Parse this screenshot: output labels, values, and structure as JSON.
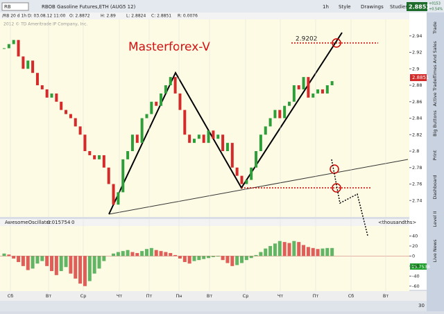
{
  "toolbar": {
    "symbol": "RB",
    "description": "RBOB Gasoline Futures,ETH (AUG5 12)",
    "interval": "1h",
    "style": "Style",
    "drawings": "Drawings",
    "studies": "Studies",
    "last": "2.8851",
    "change": "+0153",
    "change_pct": "+0.54%"
  },
  "info_bar": [
    "/RB 20 d 1h",
    "D: 03.08.12 11:00",
    "O: 2.8872",
    "H: 2.89",
    "L: 2.8824",
    "C: 2.8851",
    "R: 0.0076"
  ],
  "copyright": "2012 © TD Ameritrade IP Company, Inc.",
  "annotation": "Masterforex-V",
  "level_label": "2.9202",
  "price_tag": "2.8851",
  "oscillator": {
    "name": "AwesomeOscillator",
    "value": "0.015754",
    "extra": "0",
    "units": "<thousandths>",
    "value_tag": "15.7538"
  },
  "side_tabs": [
    "Trade",
    "Times And Sales",
    "Active Trader",
    "Big Buttons",
    "Print",
    "Dashboard",
    "Level II",
    "Live News"
  ],
  "scroll_label": "30",
  "chart_data": {
    "type": "candlestick",
    "categories": [
      "Сб",
      "Вт",
      "Ср",
      "Чт",
      "Пт",
      "Пн",
      "Вт",
      "Ср",
      "Чт",
      "Пт",
      "Сб",
      "Вт"
    ],
    "ylim": [
      2.72,
      2.96
    ],
    "yticks": [
      2.74,
      2.76,
      2.78,
      2.8,
      2.82,
      2.84,
      2.86,
      2.88,
      2.9,
      2.92,
      2.94
    ],
    "up_color": "#2e9e3a",
    "down_color": "#d42a2a",
    "close": [
      2.925,
      2.93,
      2.935,
      2.915,
      2.9,
      2.91,
      2.895,
      2.88,
      2.875,
      2.865,
      2.87,
      2.86,
      2.85,
      2.845,
      2.84,
      2.83,
      2.82,
      2.8,
      2.795,
      2.79,
      2.795,
      2.78,
      2.76,
      2.735,
      2.75,
      2.79,
      2.8,
      2.82,
      2.81,
      2.84,
      2.845,
      2.86,
      2.855,
      2.87,
      2.88,
      2.89,
      2.87,
      2.85,
      2.82,
      2.81,
      2.815,
      2.82,
      2.81,
      2.825,
      2.815,
      2.82,
      2.8,
      2.81,
      2.78,
      2.77,
      2.76,
      2.765,
      2.78,
      2.8,
      2.82,
      2.83,
      2.84,
      2.85,
      2.84,
      2.855,
      2.86,
      2.88,
      2.875,
      2.89,
      2.865,
      2.87,
      2.875,
      2.87,
      2.88,
      2.885
    ],
    "osc_ylim": [
      -70,
      60
    ],
    "osc_yticks": [
      40,
      20,
      0,
      -20,
      -40,
      -60
    ],
    "osc": [
      5,
      3,
      -5,
      -12,
      -20,
      -28,
      -25,
      -15,
      -10,
      -20,
      -30,
      -38,
      -30,
      -22,
      -35,
      -45,
      -55,
      -60,
      -50,
      -35,
      -25,
      -10,
      0,
      5,
      8,
      10,
      12,
      8,
      6,
      10,
      14,
      16,
      12,
      10,
      8,
      6,
      2,
      -5,
      -12,
      -15,
      -10,
      -8,
      -6,
      -4,
      -2,
      -1,
      -8,
      -14,
      -20,
      -18,
      -14,
      -8,
      -4,
      2,
      8,
      15,
      20,
      25,
      30,
      28,
      26,
      30,
      28,
      22,
      18,
      16,
      14,
      15,
      16,
      16
    ]
  }
}
